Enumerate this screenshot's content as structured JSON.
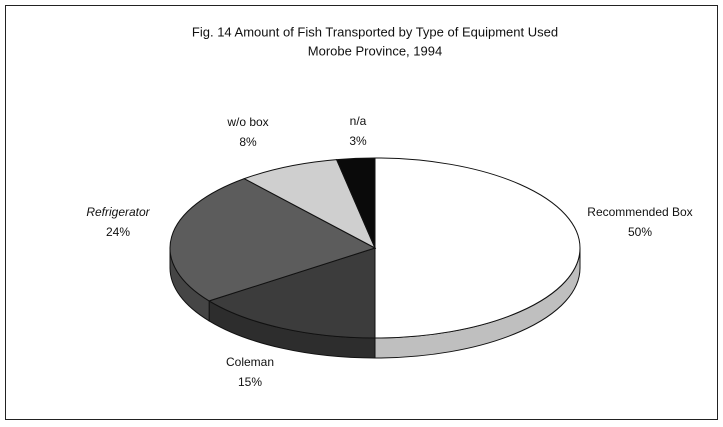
{
  "chart_data": {
    "type": "pie",
    "title": "Fig. 14 Amount of Fish Transported by Type of Equipment Used",
    "subtitle": "Morobe Province, 1994",
    "categories": [
      "Recommended Box",
      "Coleman",
      "Refrigerator",
      "w/o box",
      "n/a"
    ],
    "values": [
      50,
      15,
      24,
      8,
      3
    ],
    "value_labels": [
      "50%",
      "15%",
      "24%",
      "8%",
      "3%"
    ],
    "colors": [
      "#ffffff",
      "#3c3c3c",
      "#5c5c5c",
      "#cfcfcf",
      "#0a0a0a"
    ]
  }
}
